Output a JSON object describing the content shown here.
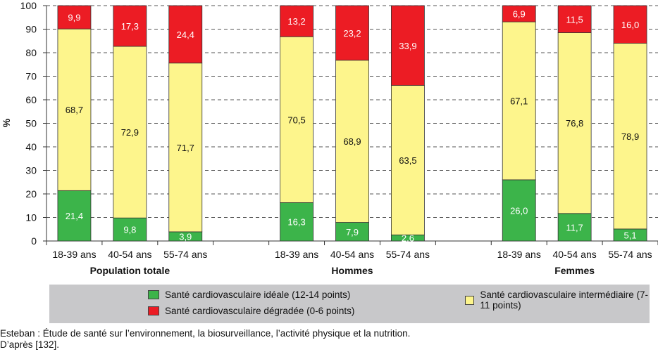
{
  "chart_data": {
    "type": "bar",
    "stacked": true,
    "ylabel": "%",
    "ylim": [
      0,
      100
    ],
    "yticks": [
      0,
      10,
      20,
      30,
      40,
      50,
      60,
      70,
      80,
      90,
      100
    ],
    "grid": "dashed horizontal",
    "groups": [
      {
        "name": "Population totale",
        "categories": [
          "18-39 ans",
          "40-54 ans",
          "55-74 ans"
        ]
      },
      {
        "name": "Hommes",
        "categories": [
          "18-39 ans",
          "40-54 ans",
          "55-74 ans"
        ]
      },
      {
        "name": "Femmes",
        "categories": [
          "18-39 ans",
          "40-54 ans",
          "55-74 ans"
        ]
      }
    ],
    "series": [
      {
        "name": "Santé cardiovasculaire idéale (12-14 points)",
        "color": "#3cb44a",
        "label_color": "#ffffff",
        "values": [
          [
            21.4,
            9.8,
            3.9
          ],
          [
            16.3,
            7.9,
            2.6
          ],
          [
            26.0,
            11.7,
            5.1
          ]
        ],
        "labels": [
          [
            "21,4",
            "9,8",
            "3,9"
          ],
          [
            "16,3",
            "7,9",
            "2,6"
          ],
          [
            "26,0",
            "11,7",
            "5,1"
          ]
        ]
      },
      {
        "name": "Santé cardiovasculaire intermédiaire (7-11 points)",
        "color": "#fdf58c",
        "label_color": "#111111",
        "values": [
          [
            68.7,
            72.9,
            71.7
          ],
          [
            70.5,
            68.9,
            63.5
          ],
          [
            67.1,
            76.8,
            78.9
          ]
        ],
        "labels": [
          [
            "68,7",
            "72,9",
            "71,7"
          ],
          [
            "70,5",
            "68,9",
            "63,5"
          ],
          [
            "67,1",
            "76,8",
            "78,9"
          ]
        ]
      },
      {
        "name": "Santé cardiovasculaire dégradée (0-6 points)",
        "color": "#ec1c24",
        "label_color": "#ffffff",
        "values": [
          [
            9.9,
            17.3,
            24.4
          ],
          [
            13.2,
            23.2,
            33.9
          ],
          [
            6.9,
            11.5,
            16.0
          ]
        ],
        "labels": [
          [
            "9,9",
            "17,3",
            "24,4"
          ],
          [
            "13,2",
            "23,2",
            "33,9"
          ],
          [
            "6,9",
            "11,5",
            "16,0"
          ]
        ]
      }
    ],
    "legend_position": "bottom"
  },
  "footer": {
    "source": "Esteban : Étude de santé sur l’environnement, la biosurveillance, l’activité physique et la nutrition.",
    "reference": "D’après [132]."
  }
}
